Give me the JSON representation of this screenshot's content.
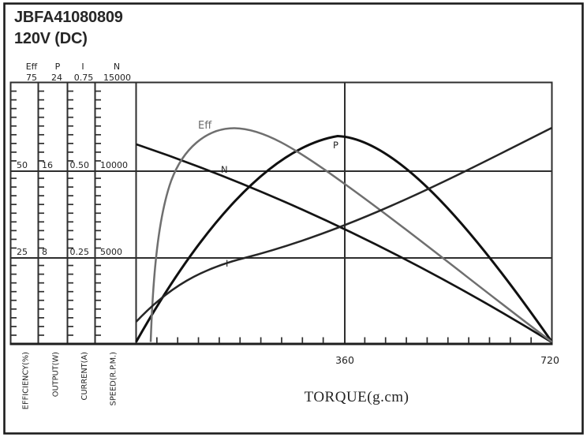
{
  "title": {
    "line1": "JBFA41080809",
    "line2": "120V (DC)"
  },
  "scales": [
    {
      "name": "Eff",
      "unit_label": "EFFICIENCY(%)",
      "top": "75",
      "mid": "50",
      "low": "25"
    },
    {
      "name": "P",
      "unit_label": "OUTPUT(W)",
      "top": "24",
      "mid": "16",
      "low": "8"
    },
    {
      "name": "I",
      "unit_label": "CURRENT(A)",
      "top": "0.75",
      "mid": "0.50",
      "low": "0.25"
    },
    {
      "name": "N",
      "unit_label": "SPEED(R.P.M.)",
      "top": "15000",
      "mid": "10000",
      "low": "5000"
    }
  ],
  "x_axis": {
    "label": "TORQUE(g.cm)",
    "mid_tick": "360",
    "end_tick": "720"
  },
  "curve_labels": {
    "eff": "Eff",
    "n": "N",
    "p": "P",
    "i": "I"
  },
  "colors": {
    "line_black": "#141414",
    "line_gray": "#6f6f6f",
    "grid": "#2e2e2e"
  },
  "chart_data": {
    "type": "line",
    "title": "JBFA41080809 120V (DC) motor performance curves",
    "xlabel": "TORQUE(g.cm)",
    "x_range": [
      0,
      720
    ],
    "x_major_ticks": [
      360,
      720
    ],
    "x_minor_step": 36,
    "grid": true,
    "legend_position": "inline-labels",
    "axes": [
      {
        "name": "EFFICIENCY(%)",
        "range": [
          0,
          75
        ],
        "ticks": [
          25,
          50,
          75
        ]
      },
      {
        "name": "OUTPUT(W)",
        "range": [
          0,
          24
        ],
        "ticks": [
          8,
          16,
          24
        ]
      },
      {
        "name": "CURRENT(A)",
        "range": [
          0,
          0.75
        ],
        "ticks": [
          0.25,
          0.5,
          0.75
        ]
      },
      {
        "name": "SPEED(R.P.M.)",
        "range": [
          0,
          15000
        ],
        "ticks": [
          5000,
          10000,
          15000
        ]
      }
    ],
    "x": [
      0,
      90,
      180,
      270,
      360,
      450,
      540,
      630,
      720
    ],
    "series": [
      {
        "name": "N",
        "axis": "SPEED(R.P.M.)",
        "values": [
          11400,
          10400,
          9200,
          7950,
          6600,
          5100,
          3500,
          1800,
          0
        ]
      },
      {
        "name": "P",
        "axis": "OUTPUT(W)",
        "values": [
          0,
          7.5,
          12.5,
          16.5,
          18.5,
          17.5,
          13,
          7,
          0
        ],
        "peak": {
          "x": 390,
          "value": 19
        }
      },
      {
        "name": "Eff",
        "axis": "EFFICIENCY(%)",
        "values": [
          0,
          51,
          61,
          55,
          46,
          34,
          23,
          11,
          0
        ],
        "peak": {
          "x": 170,
          "value": 62
        }
      },
      {
        "name": "I",
        "axis": "CURRENT(A)",
        "values": [
          0.06,
          0.18,
          0.25,
          0.29,
          0.37,
          0.41,
          0.47,
          0.54,
          0.62
        ]
      }
    ]
  }
}
